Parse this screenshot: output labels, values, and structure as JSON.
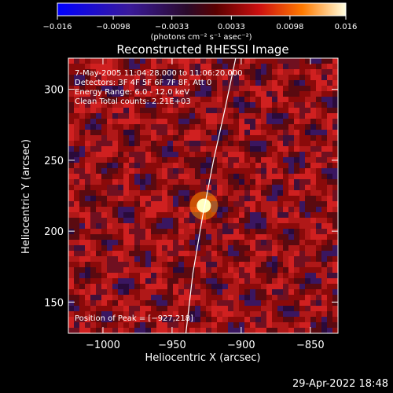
{
  "chart_data": {
    "type": "heatmap",
    "title": "Reconstructed RHESSI Image",
    "xlabel": "Heliocentric X (arcsec)",
    "ylabel": "Heliocentric Y (arcsec)",
    "xlim": [
      -1025,
      -830
    ],
    "ylim": [
      128,
      322
    ],
    "x_ticks": [
      -1000,
      -950,
      -900,
      -850
    ],
    "y_ticks": [
      150,
      200,
      250,
      300
    ],
    "colorbar": {
      "min": -0.016,
      "max": 0.016,
      "ticks": [
        -0.016,
        -0.0098,
        -0.0033,
        0.0033,
        0.0098,
        0.016
      ],
      "tick_labels": [
        "−0.016",
        "−0.0098",
        "−0.0033",
        "0.0033",
        "0.0098",
        "0.016"
      ],
      "unit_label": "(photons cm⁻² s⁻¹ asec⁻²)"
    },
    "info_lines": [
      " 7-May-2005 11:04:28.000 to 11:06:20.000",
      "Detectors: 3F 4F 5F 6F 7F 8F, Att 0",
      "Energy Range: 6.0 - 12.0 keV",
      "Clean     Total counts: 2.21E+03"
    ],
    "peak_label": "Position of Peak = [−927,218]",
    "peak": [
      -927,
      218
    ],
    "limb_line": [
      [
        -940,
        128
      ],
      [
        -935,
        170
      ],
      [
        -928,
        210
      ],
      [
        -920,
        250
      ],
      [
        -912,
        285
      ],
      [
        -904,
        322
      ]
    ]
  },
  "footer": {
    "timestamp": "29-Apr-2022 18:48"
  }
}
